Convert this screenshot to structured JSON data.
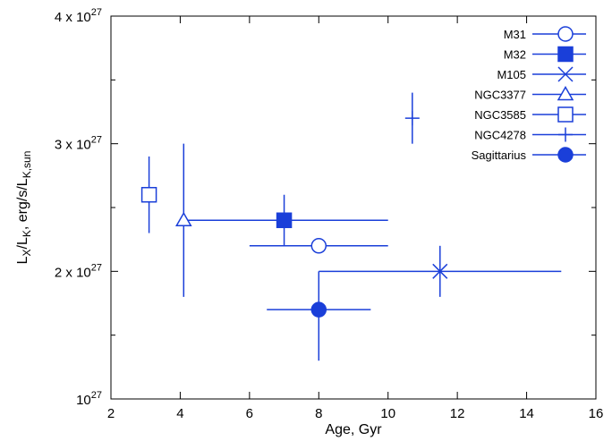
{
  "chart_data": {
    "type": "scatter",
    "xlabel": "Age, Gyr",
    "ylabel_parts": {
      "main": "L",
      "sub1": "X",
      "mid": "/L",
      "sub2": "K",
      "tail": ", erg/s/L",
      "sub3": "K,sun"
    },
    "xlim": [
      2,
      16
    ],
    "ylim": [
      1.0,
      4.0
    ],
    "y_scale_exponent": 27,
    "x_ticks": [
      2,
      4,
      6,
      8,
      10,
      12,
      14,
      16
    ],
    "y_tick_labels": [
      {
        "value": 1.0,
        "mantissa": "",
        "base": "10",
        "exp": "27"
      },
      {
        "value": 2.0,
        "mantissa": "2 x ",
        "base": "10",
        "exp": "27"
      },
      {
        "value": 3.0,
        "mantissa": "3 x ",
        "base": "10",
        "exp": "27"
      },
      {
        "value": 4.0,
        "mantissa": "4 x ",
        "base": "10",
        "exp": "27"
      }
    ],
    "y_minor_ticks": [
      1.5,
      2.5,
      3.5
    ],
    "grid": false,
    "legend_position": "top-right",
    "color": "#1a3fd9",
    "series": [
      {
        "name": "M31",
        "marker": "circle-open",
        "x": 8.0,
        "y": 2.2,
        "xerr": [
          6.0,
          10.0
        ],
        "yerr": null
      },
      {
        "name": "M32",
        "marker": "square-filled",
        "x": 7.0,
        "y": 2.4,
        "xerr": [
          4.0,
          10.0
        ],
        "yerr": [
          2.2,
          2.6
        ]
      },
      {
        "name": "M105",
        "marker": "cross-x",
        "x": 11.5,
        "y": 2.0,
        "xerr": [
          8.0,
          15.0
        ],
        "yerr": [
          1.8,
          2.2
        ]
      },
      {
        "name": "NGC3377",
        "marker": "triangle-open",
        "x": 4.1,
        "y": 2.4,
        "xerr": null,
        "yerr": [
          1.8,
          3.0
        ]
      },
      {
        "name": "NGC3585",
        "marker": "square-open",
        "x": 3.1,
        "y": 2.6,
        "xerr": null,
        "yerr": [
          2.3,
          2.9
        ]
      },
      {
        "name": "NGC4278",
        "marker": "plus",
        "x": 10.7,
        "y": 3.2,
        "xerr": null,
        "yerr": [
          3.0,
          3.4
        ]
      },
      {
        "name": "Sagittarius",
        "marker": "circle-filled",
        "x": 8.0,
        "y": 1.7,
        "xerr": [
          6.5,
          9.5
        ],
        "yerr": [
          1.3,
          2.0
        ]
      }
    ]
  }
}
